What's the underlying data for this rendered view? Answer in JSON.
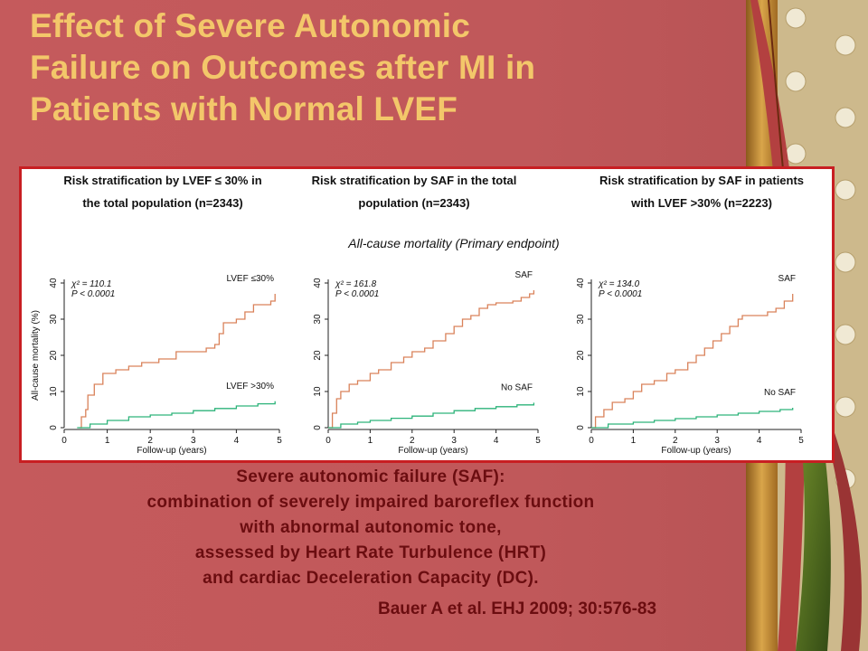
{
  "slide": {
    "title_lines": [
      "Effect of Severe Autonomic",
      "Failure on Outcomes after MI in",
      "Patients with Normal LVEF"
    ],
    "caption_lines": [
      "Severe autonomic failure (SAF):",
      "combination of severely impaired baroreflex function",
      "with abnormal autonomic tone,",
      "assessed by Heart Rate Turbulence (HRT)",
      "and cardiac Deceleration Capacity (DC)."
    ],
    "citation": "Bauer A et al. EHJ 2009; 30:576-83"
  },
  "figure": {
    "endpoint_label": "All-cause mortality (Primary endpoint)"
  },
  "colors": {
    "background": "#c2585a",
    "title": "#f3c76a",
    "caption": "#6b0d10",
    "frame": "#c81e22",
    "high_risk_series": "#d9825a",
    "low_risk_series": "#2db37a"
  },
  "chart_data": [
    {
      "type": "line",
      "title_lines": [
        "Risk stratification by LVEF ≤ 30% in",
        "the total population (n=2343)"
      ],
      "xlabel": "Follow-up (years)",
      "ylabel": "All-cause mortality (%)",
      "xlim": [
        0,
        5
      ],
      "ylim": [
        0,
        40
      ],
      "xticks": [
        "0",
        "1",
        "2",
        "3",
        "4",
        "5"
      ],
      "yticks": [
        "0",
        "10",
        "20",
        "30",
        "40"
      ],
      "annotation": {
        "chi2": "χ² = 110.1",
        "p": "P < 0.0001"
      },
      "series": [
        {
          "name": "LVEF ≤30%",
          "color": "#d9825a",
          "points": [
            [
              0.35,
              0
            ],
            [
              0.4,
              3
            ],
            [
              0.5,
              5
            ],
            [
              0.55,
              9
            ],
            [
              0.7,
              12
            ],
            [
              0.9,
              15
            ],
            [
              1.2,
              16
            ],
            [
              1.5,
              17
            ],
            [
              1.8,
              18
            ],
            [
              2.2,
              19
            ],
            [
              2.6,
              21
            ],
            [
              3.3,
              22
            ],
            [
              3.5,
              23
            ],
            [
              3.6,
              26
            ],
            [
              3.7,
              29
            ],
            [
              4.0,
              30
            ],
            [
              4.2,
              32
            ],
            [
              4.4,
              34
            ],
            [
              4.8,
              35
            ],
            [
              4.9,
              37
            ]
          ]
        },
        {
          "name": "LVEF >30%",
          "color": "#2db37a",
          "points": [
            [
              0.3,
              0
            ],
            [
              0.6,
              1
            ],
            [
              1.0,
              2
            ],
            [
              1.5,
              3
            ],
            [
              2.0,
              3.5
            ],
            [
              2.5,
              4
            ],
            [
              3.0,
              4.7
            ],
            [
              3.5,
              5.3
            ],
            [
              4.0,
              6
            ],
            [
              4.5,
              6.6
            ],
            [
              4.9,
              7.3
            ]
          ]
        }
      ]
    },
    {
      "type": "line",
      "title_lines": [
        "Risk stratification by SAF in the total",
        "population (n=2343)"
      ],
      "xlabel": "Follow-up (years)",
      "ylabel": "",
      "xlim": [
        0,
        5
      ],
      "ylim": [
        0,
        40
      ],
      "xticks": [
        "0",
        "1",
        "2",
        "3",
        "4",
        "5"
      ],
      "yticks": [
        "0",
        "10",
        "20",
        "30",
        "40"
      ],
      "annotation": {
        "chi2": "χ² = 161.8",
        "p": "P < 0.0001"
      },
      "series": [
        {
          "name": "SAF",
          "color": "#d9825a",
          "points": [
            [
              0,
              0
            ],
            [
              0.1,
              4
            ],
            [
              0.2,
              8
            ],
            [
              0.3,
              10
            ],
            [
              0.5,
              12
            ],
            [
              0.7,
              13
            ],
            [
              1.0,
              15
            ],
            [
              1.2,
              16
            ],
            [
              1.5,
              18
            ],
            [
              1.8,
              19.5
            ],
            [
              2.0,
              21
            ],
            [
              2.3,
              22
            ],
            [
              2.5,
              24
            ],
            [
              2.8,
              26
            ],
            [
              3.0,
              28
            ],
            [
              3.2,
              30
            ],
            [
              3.4,
              31
            ],
            [
              3.6,
              33
            ],
            [
              3.8,
              34
            ],
            [
              4.0,
              34.5
            ],
            [
              4.4,
              35
            ],
            [
              4.6,
              36
            ],
            [
              4.8,
              37
            ],
            [
              4.9,
              38
            ]
          ]
        },
        {
          "name": "No SAF",
          "color": "#2db37a",
          "points": [
            [
              0,
              0
            ],
            [
              0.3,
              1
            ],
            [
              0.7,
              1.5
            ],
            [
              1.0,
              2
            ],
            [
              1.5,
              2.6
            ],
            [
              2.0,
              3.2
            ],
            [
              2.5,
              4
            ],
            [
              3.0,
              4.7
            ],
            [
              3.5,
              5.3
            ],
            [
              4.0,
              5.8
            ],
            [
              4.5,
              6.3
            ],
            [
              4.9,
              6.9
            ]
          ]
        }
      ]
    },
    {
      "type": "line",
      "title_lines": [
        "Risk stratification by SAF in patients",
        "with LVEF >30% (n=2223)"
      ],
      "xlabel": "Follow-up (years)",
      "ylabel": "",
      "xlim": [
        0,
        5
      ],
      "ylim": [
        0,
        40
      ],
      "xticks": [
        "0",
        "1",
        "2",
        "3",
        "4",
        "5"
      ],
      "yticks": [
        "0",
        "10",
        "20",
        "30",
        "40"
      ],
      "annotation": {
        "chi2": "χ² = 134.0",
        "p": "P < 0.0001"
      },
      "series": [
        {
          "name": "SAF",
          "color": "#d9825a",
          "points": [
            [
              0,
              0
            ],
            [
              0.1,
              3
            ],
            [
              0.3,
              5
            ],
            [
              0.5,
              7
            ],
            [
              0.8,
              8
            ],
            [
              1.0,
              10
            ],
            [
              1.2,
              12
            ],
            [
              1.5,
              13
            ],
            [
              1.8,
              15
            ],
            [
              2.0,
              16
            ],
            [
              2.3,
              18
            ],
            [
              2.5,
              20
            ],
            [
              2.7,
              22
            ],
            [
              2.9,
              24
            ],
            [
              3.1,
              26
            ],
            [
              3.3,
              28
            ],
            [
              3.5,
              30
            ],
            [
              3.6,
              31
            ],
            [
              4.0,
              31
            ],
            [
              4.2,
              32
            ],
            [
              4.4,
              33
            ],
            [
              4.6,
              35
            ],
            [
              4.8,
              37
            ]
          ]
        },
        {
          "name": "No SAF",
          "color": "#2db37a",
          "points": [
            [
              0,
              0
            ],
            [
              0.4,
              1
            ],
            [
              1.0,
              1.5
            ],
            [
              1.5,
              2
            ],
            [
              2.0,
              2.5
            ],
            [
              2.5,
              3
            ],
            [
              3.0,
              3.5
            ],
            [
              3.5,
              4
            ],
            [
              4.0,
              4.5
            ],
            [
              4.5,
              5
            ],
            [
              4.8,
              5.5
            ]
          ]
        }
      ]
    }
  ]
}
